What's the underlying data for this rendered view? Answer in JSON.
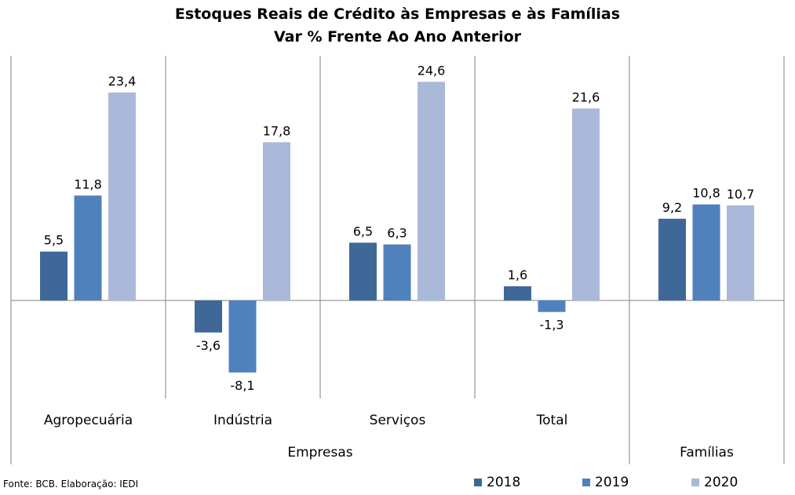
{
  "title": "Estoques Reais de Crédito às Empresas e às Famílias",
  "subtitle": "Var % Frente Ao Ano Anterior",
  "source": "Fonte: BCB. Elaboração: IEDI",
  "colors": {
    "2018": "#3f6899",
    "2019": "#4f81bd",
    "2020": "#aab9d9"
  },
  "chart_data": {
    "type": "bar",
    "title": "Estoques Reais de Crédito às Empresas e às Famílias",
    "subtitle": "Var % Frente Ao Ano Anterior",
    "categories": [
      "Agropecuária",
      "Indústria",
      "Serviços",
      "Total",
      ""
    ],
    "groups": [
      {
        "label": "Empresas",
        "categories": [
          "Agropecuária",
          "Indústria",
          "Serviços",
          "Total"
        ]
      },
      {
        "label": "Famílias",
        "categories": [
          ""
        ]
      }
    ],
    "series": [
      {
        "name": "2018",
        "values": [
          5.5,
          -3.6,
          6.5,
          1.6,
          9.2
        ],
        "labels": [
          "5,5",
          "-3,6",
          "6,5",
          "1,6",
          "9,2"
        ]
      },
      {
        "name": "2019",
        "values": [
          11.8,
          -8.1,
          6.3,
          -1.3,
          10.8
        ],
        "labels": [
          "11,8",
          "-8,1",
          "6,3",
          "-1,3",
          "10,8"
        ]
      },
      {
        "name": "2020",
        "values": [
          23.4,
          17.8,
          24.6,
          21.6,
          10.7
        ],
        "labels": [
          "23,4",
          "17,8",
          "24,6",
          "21,6",
          "10,7"
        ]
      }
    ],
    "legend": "bottom-right",
    "grid": false
  }
}
